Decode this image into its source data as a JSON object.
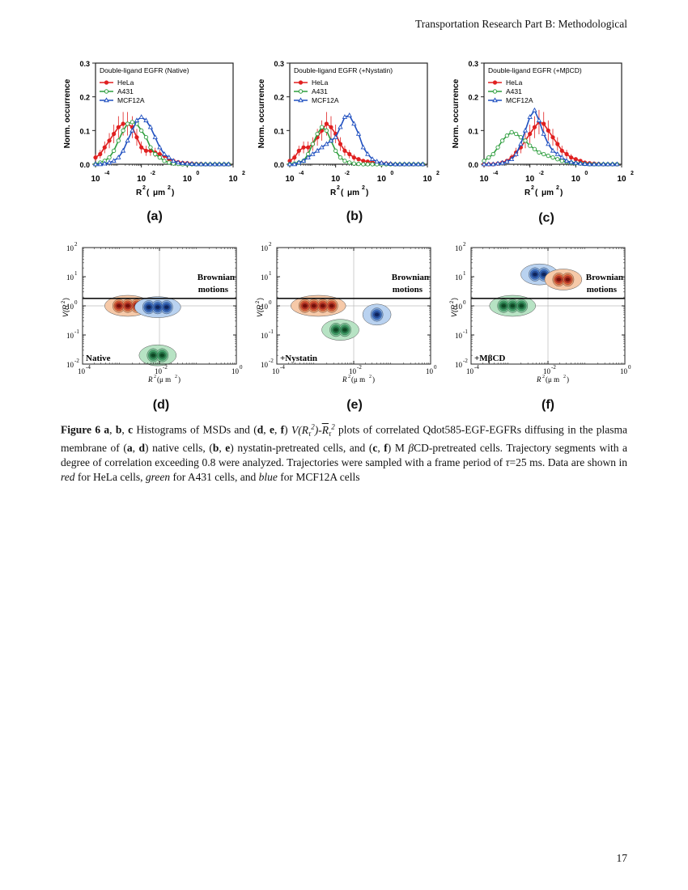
{
  "header": {
    "journal": "Transportation Research Part B: Methodological"
  },
  "page_number": "17",
  "colors": {
    "hela": "#e02020",
    "a431": "#2e9e3e",
    "mcf12a": "#2050c0"
  },
  "histograms": {
    "ylabel": "Norm. occurrence",
    "xlabel_main": "R",
    "xlabel_unit_open": " (",
    "xlabel_unit": "μm",
    "xlabel_unit_close": ")",
    "sup2": "2",
    "yticks": [
      "0.0",
      "0.1",
      "0.2",
      "0.3"
    ],
    "xtick_base": "10",
    "xtick_exps": [
      "-4",
      "-2",
      "0",
      "2"
    ],
    "legend": [
      "HeLa",
      "A431",
      "MCF12A"
    ],
    "panels": [
      {
        "label": "(a)",
        "title": "Double-ligand EGFR (Native)"
      },
      {
        "label": "(b)",
        "title": "Double-ligand EGFR (+Nystatin)"
      },
      {
        "label": "(c)",
        "title": "Double-ligand EGFR (+MβCD)"
      }
    ]
  },
  "contours": {
    "ylabel": "V(R",
    "ylabel_close": ")",
    "xlabel": "R",
    "xlabel_unit": "(μ m",
    "xlabel_unit_alt": "(μ m",
    "xlabel_close": ")",
    "sup2": "2",
    "brownian_line1": "Brownian",
    "brownian_line2": "motions",
    "xtick_base": "10",
    "xtick_exps": [
      "-4",
      "-2",
      "0"
    ],
    "ytick_exps": [
      "2",
      "1",
      "0",
      "-1",
      "-2"
    ],
    "panels": [
      {
        "label": "(d)",
        "condition": "Native"
      },
      {
        "label": "(e)",
        "condition": "+Nystatin"
      },
      {
        "label": "(f)",
        "condition": "+MβCD"
      }
    ]
  },
  "caption": {
    "fig": "Figure 6",
    "p1": " a",
    "p2": ", ",
    "p3": "b",
    "p4": ", ",
    "p5": "c",
    "t1": " Histograms of MSDs and (",
    "d": "d",
    "e": "e",
    "f": "f",
    "t2": ") ",
    "formula": "V(R",
    "t3": " plots of correlated Qdot585-EGF-EGFRs diffusing in the plasma membrane of (",
    "t4": ") native cells, (",
    "t5": ") nystatin-pretreated cells, and (",
    "t6": ") M ",
    "beta": "β",
    "t7": "CD-pretreated cells. Trajectory segments with a degree of correlation exceeding 0.8 were analyzed. Trajectories were sampled with a frame period of ",
    "tau": "τ",
    "t8": "=25 ms. Data are shown in ",
    "red": "red",
    "t9": " for HeLa cells, ",
    "green": "green",
    "t10": " for A431 cells, and ",
    "blue": "blue",
    "t11": " for MCF12A cells",
    "a": "a",
    "b": "b",
    "c": "c",
    "comma": ", "
  },
  "chart_data": [
    {
      "type": "line",
      "title": "Double-ligand EGFR (Native)",
      "xlabel": "R2 (μm2)",
      "ylabel": "Norm. occurrence",
      "xscale": "log",
      "xlim": [
        0.0001,
        100
      ],
      "ylim": [
        0,
        0.3
      ],
      "x": [
        0.0001,
        0.00016,
        0.00025,
        0.0004,
        0.00063,
        0.001,
        0.0016,
        0.0025,
        0.004,
        0.0063,
        0.01,
        0.016,
        0.025,
        0.04,
        0.063,
        0.1,
        0.16,
        0.25,
        0.4,
        0.63,
        1,
        1.6,
        2.5,
        4,
        6.3,
        10,
        16,
        25,
        40,
        63
      ],
      "series": [
        {
          "name": "HeLa",
          "values": [
            0.02,
            0.03,
            0.05,
            0.07,
            0.09,
            0.11,
            0.12,
            0.12,
            0.11,
            0.08,
            0.05,
            0.04,
            0.04,
            0.035,
            0.03,
            0.025,
            0.015,
            0.01,
            0.006,
            0.004,
            0.003,
            0.002,
            0.001,
            0.001,
            0,
            0,
            0,
            0,
            0,
            0
          ]
        },
        {
          "name": "A431",
          "values": [
            0,
            0.005,
            0.01,
            0.02,
            0.04,
            0.07,
            0.1,
            0.12,
            0.125,
            0.12,
            0.1,
            0.08,
            0.05,
            0.03,
            0.02,
            0.01,
            0.005,
            0.002,
            0.001,
            0,
            0,
            0,
            0,
            0,
            0,
            0,
            0,
            0,
            0,
            0
          ]
        },
        {
          "name": "MCF12A",
          "values": [
            0,
            0,
            0.002,
            0.005,
            0.01,
            0.02,
            0.04,
            0.07,
            0.1,
            0.13,
            0.14,
            0.13,
            0.11,
            0.08,
            0.05,
            0.03,
            0.02,
            0.01,
            0.005,
            0.003,
            0.002,
            0.001,
            0,
            0,
            0,
            0,
            0,
            0,
            0,
            0
          ]
        }
      ]
    },
    {
      "type": "line",
      "title": "Double-ligand EGFR (+Nystatin)",
      "xlabel": "R2 (μm2)",
      "ylabel": "Norm. occurrence",
      "xscale": "log",
      "xlim": [
        0.0001,
        100
      ],
      "ylim": [
        0,
        0.3
      ],
      "x": [
        0.0001,
        0.00016,
        0.00025,
        0.0004,
        0.00063,
        0.001,
        0.0016,
        0.0025,
        0.004,
        0.0063,
        0.01,
        0.016,
        0.025,
        0.04,
        0.063,
        0.1,
        0.16,
        0.25,
        0.4,
        0.63,
        1,
        1.6,
        2.5,
        4,
        6.3,
        10,
        16,
        25,
        40,
        63
      ],
      "series": [
        {
          "name": "HeLa",
          "values": [
            0.01,
            0.02,
            0.04,
            0.05,
            0.05,
            0.06,
            0.08,
            0.1,
            0.12,
            0.11,
            0.09,
            0.06,
            0.04,
            0.03,
            0.02,
            0.015,
            0.01,
            0.008,
            0.006,
            0.004,
            0.003,
            0.002,
            0.001,
            0,
            0,
            0,
            0,
            0,
            0,
            0
          ]
        },
        {
          "name": "A431",
          "values": [
            0,
            0.002,
            0.005,
            0.01,
            0.03,
            0.06,
            0.09,
            0.11,
            0.1,
            0.07,
            0.04,
            0.02,
            0.01,
            0.005,
            0.002,
            0.001,
            0,
            0,
            0,
            0,
            0,
            0,
            0,
            0,
            0,
            0,
            0,
            0,
            0,
            0
          ]
        },
        {
          "name": "MCF12A",
          "values": [
            0,
            0,
            0.005,
            0.01,
            0.02,
            0.03,
            0.04,
            0.05,
            0.06,
            0.07,
            0.08,
            0.11,
            0.14,
            0.145,
            0.12,
            0.09,
            0.05,
            0.03,
            0.015,
            0.008,
            0.004,
            0.002,
            0.001,
            0,
            0,
            0,
            0,
            0,
            0,
            0
          ]
        }
      ]
    },
    {
      "type": "line",
      "title": "Double-ligand EGFR (+MβCD)",
      "xlabel": "R2 (μm2)",
      "ylabel": "Norm. occurrence",
      "xscale": "log",
      "xlim": [
        0.0001,
        100
      ],
      "ylim": [
        0,
        0.3
      ],
      "x": [
        0.0001,
        0.00016,
        0.00025,
        0.0004,
        0.00063,
        0.001,
        0.0016,
        0.0025,
        0.004,
        0.0063,
        0.01,
        0.016,
        0.025,
        0.04,
        0.063,
        0.1,
        0.16,
        0.25,
        0.4,
        0.63,
        1,
        1.6,
        2.5,
        4,
        6.3,
        10,
        16,
        25,
        40,
        63
      ],
      "series": [
        {
          "name": "HeLa",
          "values": [
            0,
            0,
            0,
            0.002,
            0.005,
            0.01,
            0.02,
            0.035,
            0.05,
            0.07,
            0.09,
            0.11,
            0.125,
            0.12,
            0.1,
            0.08,
            0.06,
            0.04,
            0.03,
            0.02,
            0.015,
            0.01,
            0.005,
            0.003,
            0.002,
            0.001,
            0,
            0,
            0,
            0
          ]
        },
        {
          "name": "A431",
          "values": [
            0.01,
            0.02,
            0.03,
            0.05,
            0.07,
            0.085,
            0.095,
            0.09,
            0.08,
            0.07,
            0.055,
            0.045,
            0.035,
            0.03,
            0.025,
            0.02,
            0.015,
            0.01,
            0.007,
            0.005,
            0.003,
            0.002,
            0.001,
            0,
            0,
            0,
            0,
            0,
            0,
            0
          ]
        },
        {
          "name": "MCF12A",
          "values": [
            0,
            0,
            0,
            0.002,
            0.004,
            0.008,
            0.015,
            0.03,
            0.06,
            0.1,
            0.14,
            0.16,
            0.13,
            0.09,
            0.06,
            0.04,
            0.03,
            0.02,
            0.01,
            0.006,
            0.004,
            0.002,
            0.001,
            0,
            0,
            0,
            0,
            0,
            0,
            0
          ]
        }
      ]
    },
    {
      "type": "contour",
      "title": "Native",
      "xlabel": "R2 (μm2)",
      "ylabel": "V(R2)",
      "xscale": "log",
      "yscale": "log",
      "xlim": [
        0.0001,
        1
      ],
      "ylim": [
        0.01,
        100
      ],
      "threshold_y": 1.8,
      "annotation": "Brownian motions",
      "clusters": [
        {
          "name": "HeLa",
          "center_x": 0.0015,
          "center_y": 1.0,
          "peaks": 3
        },
        {
          "name": "MCF12A",
          "center_x": 0.009,
          "center_y": 0.9,
          "peaks": 3
        },
        {
          "name": "A431",
          "center_x": 0.009,
          "center_y": 0.02,
          "peaks": 2
        }
      ]
    },
    {
      "type": "contour",
      "title": "+Nystatin",
      "xlabel": "R2 (μm2)",
      "ylabel": "V(R2)",
      "xscale": "log",
      "yscale": "log",
      "xlim": [
        0.0001,
        1
      ],
      "ylim": [
        0.01,
        100
      ],
      "threshold_y": 1.8,
      "annotation": "Brownian motions",
      "clusters": [
        {
          "name": "HeLa",
          "center_x": 0.0012,
          "center_y": 1.0,
          "peaks": 4
        },
        {
          "name": "A431",
          "center_x": 0.0045,
          "center_y": 0.15,
          "peaks": 2
        },
        {
          "name": "MCF12A",
          "center_x": 0.04,
          "center_y": 0.5,
          "peaks": 1
        }
      ]
    },
    {
      "type": "contour",
      "title": "+MβCD",
      "xlabel": "R2 (μm2)",
      "ylabel": "V(R2)",
      "xscale": "log",
      "yscale": "log",
      "xlim": [
        0.0001,
        1
      ],
      "ylim": [
        0.01,
        100
      ],
      "threshold_y": 1.8,
      "annotation": "Brownian motions",
      "clusters": [
        {
          "name": "MCF12A",
          "center_x": 0.006,
          "center_y": 12,
          "peaks": 2
        },
        {
          "name": "HeLa",
          "center_x": 0.025,
          "center_y": 8,
          "peaks": 2
        },
        {
          "name": "A431",
          "center_x": 0.0012,
          "center_y": 1.0,
          "peaks": 3
        }
      ]
    }
  ]
}
